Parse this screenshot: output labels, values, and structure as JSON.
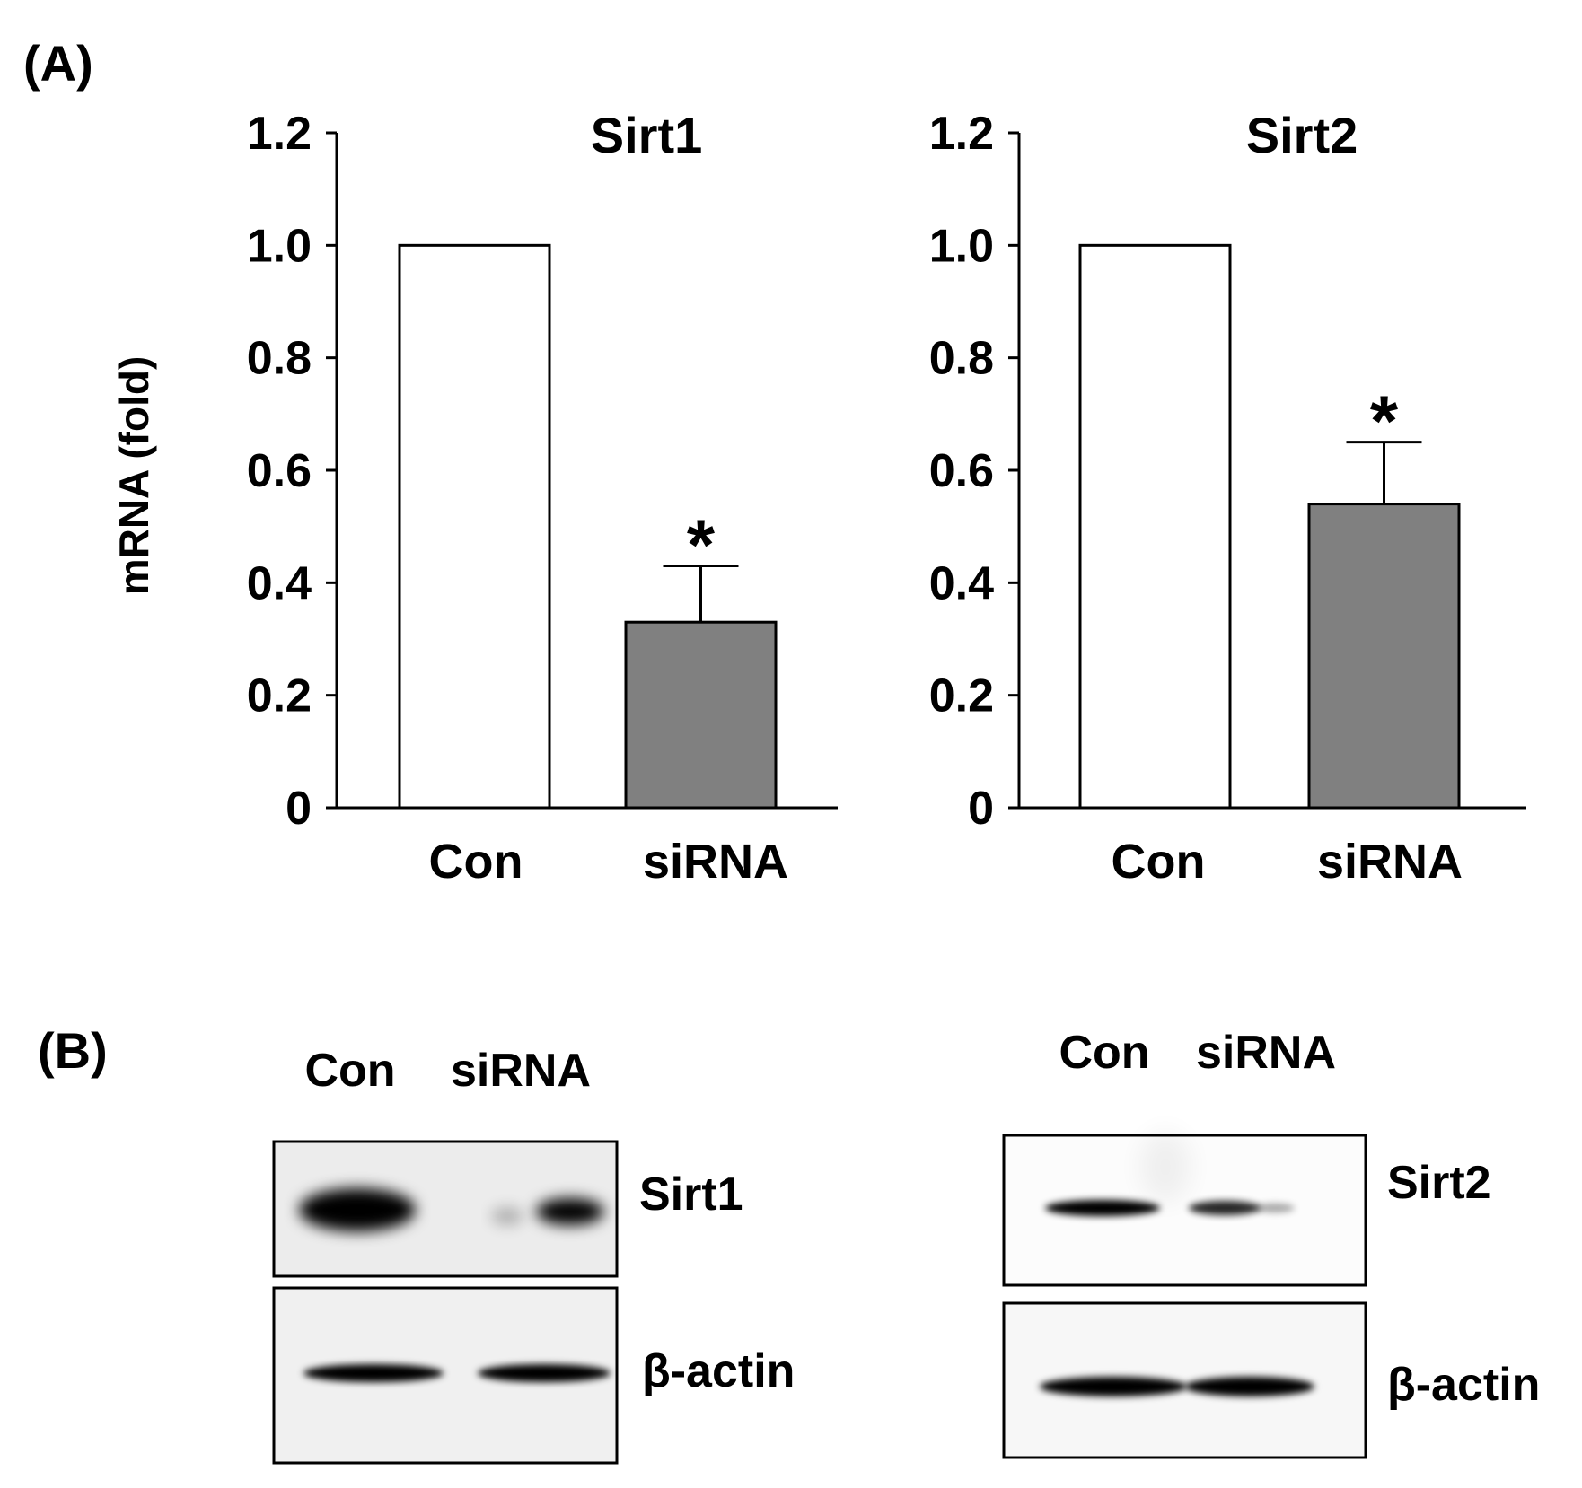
{
  "panel_a_label": "(A)",
  "panel_b_label": "(B)",
  "chart_data": [
    {
      "type": "bar",
      "title": "Sirt1",
      "ylabel": "mRNA (fold)",
      "xlabel": "",
      "categories": [
        "Con",
        "siRNA"
      ],
      "values": [
        1.0,
        0.33
      ],
      "error": [
        0,
        0.1
      ],
      "significance": [
        "",
        "*"
      ],
      "bar_colors": [
        "#ffffff",
        "#808080"
      ],
      "ylim": [
        0,
        1.2
      ],
      "yticks": [
        0,
        0.2,
        0.4,
        0.6,
        0.8,
        1.0,
        1.2
      ],
      "ytick_labels": [
        "0",
        "0.2",
        "0.4",
        "0.6",
        "0.8",
        "1.0",
        "1.2"
      ],
      "grid": false
    },
    {
      "type": "bar",
      "title": "Sirt2",
      "ylabel": "",
      "xlabel": "",
      "categories": [
        "Con",
        "siRNA"
      ],
      "values": [
        1.0,
        0.54
      ],
      "error": [
        0,
        0.11
      ],
      "significance": [
        "",
        "*"
      ],
      "bar_colors": [
        "#ffffff",
        "#808080"
      ],
      "ylim": [
        0,
        1.2
      ],
      "yticks": [
        0,
        0.2,
        0.4,
        0.6,
        0.8,
        1.0,
        1.2
      ],
      "ytick_labels": [
        "0",
        "0.2",
        "0.4",
        "0.6",
        "0.8",
        "1.0",
        "1.2"
      ],
      "grid": false
    }
  ],
  "western_blots": [
    {
      "lanes": [
        "Con",
        "siRNA"
      ],
      "rows": [
        {
          "protein": "Sirt1",
          "band_intensity": [
            1.0,
            0.35
          ]
        },
        {
          "protein": "β-actin",
          "band_intensity": [
            0.95,
            0.95
          ]
        }
      ]
    },
    {
      "lanes": [
        "Con",
        "siRNA"
      ],
      "rows": [
        {
          "protein": "Sirt2",
          "band_intensity": [
            0.95,
            0.55
          ]
        },
        {
          "protein": "β-actin",
          "band_intensity": [
            1.0,
            1.0
          ]
        }
      ]
    }
  ]
}
